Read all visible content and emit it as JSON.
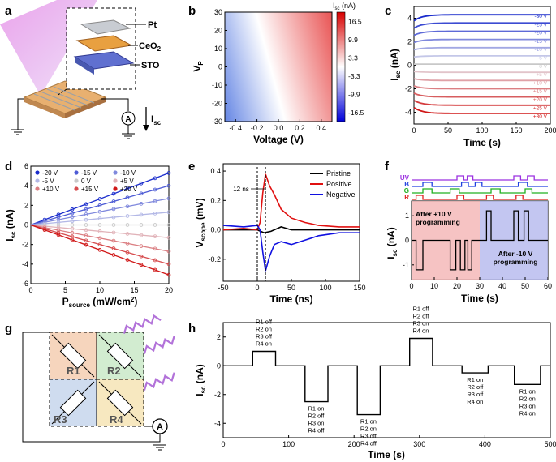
{
  "panels": {
    "a": {
      "letter": "a",
      "layers": [
        "Pt",
        "CeO",
        "STO"
      ],
      "ceo_subscript": "2",
      "meter": "A",
      "current_label": "I",
      "current_sub": "sc"
    },
    "g": {
      "letter": "g",
      "resistors": [
        "R1",
        "R2",
        "R3",
        "R4"
      ],
      "meter": "A"
    },
    "f_extra": {
      "region_left": [
        "After +10 V",
        "programming"
      ],
      "region_right": [
        "After -10 V",
        "programming"
      ],
      "channels": [
        "UV",
        "B",
        "G",
        "R"
      ]
    },
    "h_extra": {
      "states": [
        [
          "R1 off",
          "R2 on",
          "R3 off",
          "R4 on"
        ],
        [
          "R1 on",
          "R2 off",
          "R3 on",
          "R4 off"
        ],
        [
          "R1 on",
          "R2 on",
          "R3 off",
          "R4 off"
        ],
        [
          "R1 off",
          "R2 off",
          "R3 on",
          "R4 on"
        ],
        [
          "R1 on",
          "R2 off",
          "R3 off",
          "R4 on"
        ],
        [
          "R1 on",
          "R2 on",
          "R3 on",
          "R4 on"
        ]
      ]
    }
  },
  "chart_data": [
    {
      "panel": "b",
      "type": "heatmap",
      "xlabel": "Voltage (V)",
      "ylabel": "V",
      "ylabel_sub": "P",
      "xlim": [
        -0.5,
        0.5
      ],
      "ylim": [
        -30,
        30
      ],
      "xticks": [
        "-0.4",
        "-0.2",
        "0.0",
        "0.2",
        "0.4"
      ],
      "yticks": [
        "-30",
        "-20",
        "-10",
        "0",
        "10",
        "20",
        "30"
      ],
      "colorbar_title": "I",
      "colorbar_title_sub": "sc",
      "colorbar_unit": " (nA)",
      "colorbar_ticks": [
        "16.5",
        "9.9",
        "3.3",
        "-3.3",
        "-9.9",
        "-16.5"
      ]
    },
    {
      "panel": "c",
      "type": "line",
      "xlabel": "Time (s)",
      "ylabel": "I",
      "ylabel_sub": "sc",
      "ylabel_unit": " (nA)",
      "xlim": [
        0,
        200
      ],
      "ylim": [
        -5,
        5
      ],
      "xticks": [
        "0",
        "50",
        "100",
        "150",
        "200"
      ],
      "yticks": [
        "4",
        "2",
        "0",
        "-2",
        "-4"
      ],
      "legend": [
        "-30 V",
        "-25 V",
        "-20 V",
        "-15 V",
        "-10 V",
        "-5 V",
        "0 V",
        "+5 V",
        "+10 V",
        "+15 V",
        "+20 V",
        "+25 V",
        "+30 V"
      ],
      "levels": [
        4.3,
        3.6,
        2.9,
        2.2,
        1.5,
        0.8,
        0.1,
        -0.6,
        -1.3,
        -2.0,
        -2.7,
        -3.4,
        -4.1
      ]
    },
    {
      "panel": "d",
      "type": "line",
      "xlabel": "P",
      "xlabel_sub": "source",
      "xlabel_unit": " (mW/cm",
      "xlabel_sup": "2",
      "xlabel_end": ")",
      "ylabel": "I",
      "ylabel_sub": "sc",
      "ylabel_unit": " (nA)",
      "xlim": [
        0,
        20
      ],
      "ylim": [
        -6,
        6
      ],
      "xticks": [
        "0",
        "5",
        "10",
        "15",
        "20"
      ],
      "yticks": [
        "6",
        "4",
        "2",
        "0",
        "-2",
        "-4",
        "-6"
      ],
      "legend": [
        "-20 V",
        "-15 V",
        "-10 V",
        "-5 V",
        "0 V",
        "+5 V",
        "+10 V",
        "+15 V",
        "+20 V"
      ],
      "slopes": [
        0.265,
        0.2,
        0.135,
        0.065,
        0.0,
        -0.065,
        -0.135,
        -0.2,
        -0.255
      ]
    },
    {
      "panel": "e",
      "type": "line",
      "xlabel": "Time (ns)",
      "ylabel": "V",
      "ylabel_sub": "scope",
      "ylabel_unit": " (mV)",
      "xlim": [
        -50,
        150
      ],
      "ylim": [
        -0.35,
        0.45
      ],
      "xticks": [
        "-50",
        "0",
        "50",
        "100",
        "150"
      ],
      "yticks": [
        "0.4",
        "0.2",
        "0.0",
        "-0.2"
      ],
      "annotation": "12 ns",
      "series": [
        {
          "name": "Pristine",
          "color": "#000000",
          "x": [
            -50,
            -20,
            0,
            10,
            20,
            35,
            50,
            80,
            150
          ],
          "y": [
            0.0,
            0.0,
            0.0,
            -0.02,
            -0.01,
            0.02,
            0.0,
            0.0,
            0.0
          ]
        },
        {
          "name": "Positive",
          "color": "#e01010",
          "x": [
            -50,
            -20,
            0,
            4,
            8,
            12,
            18,
            25,
            35,
            50,
            70,
            90,
            120,
            150
          ],
          "y": [
            0.0,
            0.01,
            0.0,
            0.05,
            0.25,
            0.38,
            0.3,
            0.24,
            0.14,
            0.08,
            0.05,
            0.03,
            0.02,
            0.02
          ]
        },
        {
          "name": "Negative",
          "color": "#1010e0",
          "x": [
            -50,
            -20,
            0,
            4,
            8,
            12,
            18,
            25,
            35,
            50,
            70,
            90,
            120,
            150
          ],
          "y": [
            0.03,
            0.02,
            0.03,
            0.0,
            -0.15,
            -0.28,
            -0.18,
            -0.1,
            -0.08,
            -0.1,
            -0.07,
            -0.04,
            -0.02,
            -0.02
          ]
        }
      ]
    },
    {
      "panel": "f",
      "type": "line",
      "xlabel": "Time (s)",
      "ylabel": "I",
      "ylabel_sub": "sc",
      "ylabel_unit": " (nA)",
      "xlim": [
        0,
        60
      ],
      "ylim": [
        -1.6,
        1.6
      ],
      "xticks": [
        "0",
        "10",
        "20",
        "30",
        "40",
        "50",
        "60"
      ],
      "yticks": [
        "1",
        "0",
        "-1"
      ],
      "x": [
        0,
        2,
        2,
        5,
        5,
        17,
        17,
        19.5,
        19.5,
        21.5,
        21.5,
        23.5,
        23.5,
        24.8,
        24.8,
        26.5,
        26.5,
        28,
        28,
        33,
        33,
        35,
        35,
        45,
        45,
        47,
        47,
        49.5,
        49.5,
        51.5,
        51.5,
        60
      ],
      "y": [
        0,
        0,
        -1.2,
        -1.2,
        0,
        0,
        -1.2,
        -1.2,
        0,
        0,
        -1.2,
        -1.2,
        0,
        0,
        -1.2,
        -1.2,
        0,
        0,
        0,
        0,
        1.2,
        1.2,
        0,
        0,
        1.2,
        1.2,
        0,
        0,
        1.2,
        1.2,
        0,
        0
      ]
    },
    {
      "panel": "h",
      "type": "line",
      "xlabel": "Time (s)",
      "ylabel": "I",
      "ylabel_sub": "sc",
      "ylabel_unit": " (nA)",
      "xlim": [
        0,
        500
      ],
      "ylim": [
        -5,
        3
      ],
      "xticks": [
        "0",
        "100",
        "200",
        "300",
        "400",
        "500"
      ],
      "yticks": [
        "2",
        "0",
        "-2",
        "-4"
      ],
      "x": [
        0,
        45,
        45,
        80,
        80,
        125,
        125,
        160,
        160,
        205,
        205,
        240,
        240,
        285,
        285,
        320,
        320,
        365,
        365,
        405,
        405,
        445,
        445,
        485,
        485,
        500
      ],
      "y": [
        0,
        0,
        1.0,
        1.0,
        0,
        0,
        -2.5,
        -2.5,
        0,
        0,
        -3.4,
        -3.4,
        0,
        0,
        1.9,
        1.9,
        0,
        0,
        -0.5,
        -0.5,
        0,
        0,
        -1.3,
        -1.3,
        0,
        0
      ]
    }
  ]
}
